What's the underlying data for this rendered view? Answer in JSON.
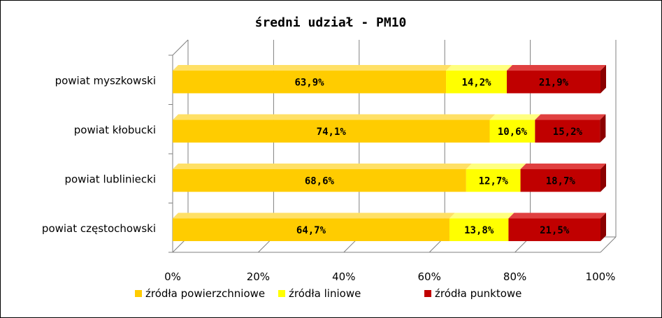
{
  "chart_data": {
    "type": "bar",
    "orientation": "horizontal",
    "stacked": "percent",
    "three_d": true,
    "title": "średni udział - PM10",
    "categories": [
      "powiat myszkowski",
      "powiat kłobucki",
      "powiat lubliniecki",
      "powiat częstochowski"
    ],
    "series": [
      {
        "name": "źródła powierzchniowe",
        "color": "#FFCC00",
        "side_color": "#D9A800",
        "top_color": "#FFE066",
        "values": [
          63.9,
          74.1,
          68.6,
          64.7
        ],
        "labels": [
          "63,9%",
          "74,1%",
          "68,6%",
          "64,7%"
        ]
      },
      {
        "name": "źródła liniowe",
        "color": "#FFFF00",
        "side_color": "#D9D900",
        "top_color": "#FFFF80",
        "values": [
          14.2,
          10.6,
          12.7,
          13.8
        ],
        "labels": [
          "14,2%",
          "10,6%",
          "12,7%",
          "13,8%"
        ]
      },
      {
        "name": "źródła punktowe",
        "color": "#C00000",
        "side_color": "#8B0000",
        "top_color": "#E04040",
        "values": [
          21.9,
          15.2,
          18.7,
          21.5
        ],
        "labels": [
          "21,9%",
          "15,2%",
          "18,7%",
          "21,5%"
        ]
      }
    ],
    "xlim": [
      0,
      100
    ],
    "x_ticks": [
      "0%",
      "20%",
      "40%",
      "60%",
      "80%",
      "100%"
    ],
    "grid": "vertical",
    "legend_position": "bottom",
    "axis_color": "#808080"
  }
}
